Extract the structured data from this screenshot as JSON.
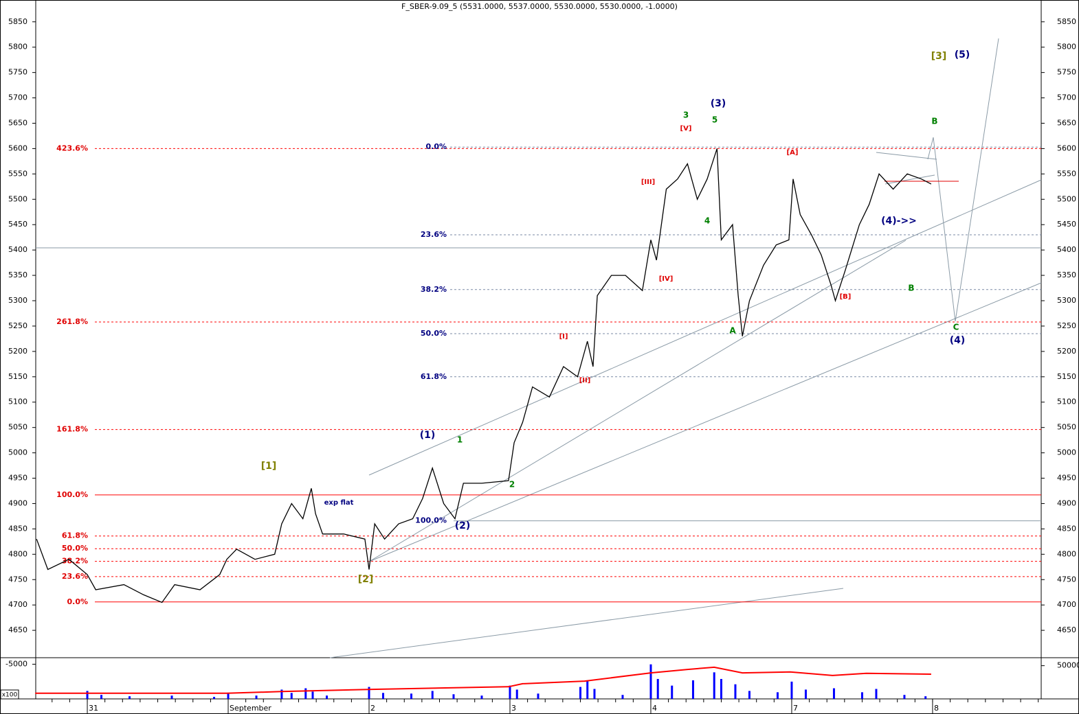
{
  "chart_data": [
    {
      "type": "line",
      "title": "F_SBER-9.09_5 (5531.0000, 5537.0000, 5530.0000, 5530.0000, -1.0000)",
      "color": "#000000",
      "x": [
        -0.36,
        -0.28,
        -0.13,
        0,
        0.06,
        0.26,
        0.4,
        0.53,
        0.62,
        0.8,
        0.94,
        0.99,
        1.06,
        1.19,
        1.33,
        1.38,
        1.45,
        1.53,
        1.59,
        1.62,
        1.67,
        1.82,
        1.97,
        2.0,
        2.04,
        2.11,
        2.21,
        2.31,
        2.38,
        2.45,
        2.53,
        2.61,
        2.67,
        2.8,
        2.99,
        3.03,
        3.09,
        3.16,
        3.28,
        3.38,
        3.48,
        3.55,
        3.59,
        3.62,
        3.72,
        3.82,
        3.94,
        4.0,
        4.04,
        4.11,
        4.19,
        4.26,
        4.33,
        4.4,
        4.47,
        4.5,
        4.58,
        4.62,
        4.65,
        4.7,
        4.8,
        4.89,
        4.98,
        5.01,
        5.06,
        5.14,
        5.21,
        5.28,
        5.31,
        5.38,
        5.48,
        5.55,
        5.62,
        5.72,
        5.82,
        5.92,
        5.99
      ],
      "values": [
        4830,
        4770,
        4790,
        4760,
        4730,
        4740,
        4720,
        4705,
        4740,
        4730,
        4760,
        4790,
        4810,
        4790,
        4800,
        4860,
        4900,
        4870,
        4930,
        4880,
        4840,
        4840,
        4830,
        4770,
        4860,
        4830,
        4860,
        4870,
        4910,
        4970,
        4900,
        4870,
        4940,
        4940,
        4945,
        5020,
        5060,
        5130,
        5110,
        5170,
        5150,
        5220,
        5170,
        5310,
        5350,
        5350,
        5320,
        5420,
        5380,
        5520,
        5540,
        5570,
        5500,
        5540,
        5600,
        5420,
        5450,
        5310,
        5230,
        5300,
        5370,
        5410,
        5420,
        5540,
        5470,
        5430,
        5390,
        5330,
        5300,
        5360,
        5450,
        5490,
        5550,
        5520,
        5550,
        5540,
        5530
      ],
      "xlim": [
        -0.366,
        6.771
      ],
      "xticks": [
        {
          "value": 0,
          "label": "31"
        },
        {
          "value": 1,
          "label": "September"
        },
        2,
        3,
        4,
        {
          "value": 5,
          "label": "7"
        },
        {
          "value": 6,
          "label": "8"
        }
      ],
      "ylim": [
        4596,
        5893
      ],
      "yticks": [
        4650,
        4700,
        4750,
        4800,
        4850,
        4900,
        4950,
        5000,
        5050,
        5100,
        5150,
        5200,
        5250,
        5300,
        5350,
        5400,
        5450,
        5500,
        5550,
        5600,
        5650,
        5700,
        5750,
        5800,
        5850
      ],
      "fib_levels_red": [
        {
          "value": 5600,
          "label": "423.6%"
        },
        {
          "value": 5258,
          "label": "261.8%"
        },
        {
          "value": 5046,
          "label": "161.8%"
        },
        {
          "value": 4917,
          "label": "100.0%"
        },
        {
          "value": 4836,
          "label": "61.8%"
        },
        {
          "value": 4811,
          "label": "50.0%"
        },
        {
          "value": 4786,
          "label": "38.2%"
        },
        {
          "value": 4756,
          "label": "23.6%"
        },
        {
          "value": 4706,
          "label": "0.0%"
        }
      ],
      "fib_levels_blue": [
        {
          "value": 5603,
          "label": "0.0%"
        },
        {
          "value": 5430,
          "label": "23.6%"
        },
        {
          "value": 5322,
          "label": "38.2%"
        },
        {
          "value": 5235,
          "label": "50.0%"
        },
        {
          "value": 5150,
          "label": "61.8%"
        },
        {
          "value": 4866,
          "label": "100.0%"
        }
      ],
      "annotations": [
        {
          "text": "[1]",
          "color": "#808000"
        },
        {
          "text": "[2]",
          "color": "#808000"
        },
        {
          "text": "[3]",
          "color": "#808000"
        },
        {
          "text": "(1)",
          "color": "#000080"
        },
        {
          "text": "(2)",
          "color": "#000080"
        },
        {
          "text": "(3)",
          "color": "#000080"
        },
        {
          "text": "(4)",
          "color": "#000080"
        },
        {
          "text": "(5)",
          "color": "#000080"
        },
        {
          "text": "(4)->>",
          "color": "#000080"
        },
        {
          "text": "1",
          "color": "#008000"
        },
        {
          "text": "2",
          "color": "#008000"
        },
        {
          "text": "3",
          "color": "#008000"
        },
        {
          "text": "4",
          "color": "#008000"
        },
        {
          "text": "5",
          "color": "#008000"
        },
        {
          "text": "A",
          "color": "#008000"
        },
        {
          "text": "B",
          "color": "#008000"
        },
        {
          "text": "B",
          "color": "#008000"
        },
        {
          "text": "C",
          "color": "#008000"
        },
        {
          "text": "[I]",
          "color": "#e00000"
        },
        {
          "text": "[II]",
          "color": "#e00000"
        },
        {
          "text": "[III]",
          "color": "#e00000"
        },
        {
          "text": "[IV]",
          "color": "#e00000"
        },
        {
          "text": "[V]",
          "color": "#e00000"
        },
        {
          "text": "[A]",
          "color": "#e00000"
        },
        {
          "text": "[B]",
          "color": "#e00000"
        },
        {
          "text": "exp flat",
          "color": "#000080"
        }
      ]
    },
    {
      "type": "bar",
      "ylabel": "x100",
      "color": "#0000ff",
      "x": [
        0.0,
        0.1,
        0.3,
        0.6,
        0.9,
        1.0,
        1.2,
        1.38,
        1.45,
        1.55,
        1.6,
        1.7,
        2.0,
        2.1,
        2.3,
        2.45,
        2.6,
        2.8,
        3.0,
        3.05,
        3.2,
        3.5,
        3.55,
        3.6,
        3.8,
        4.0,
        4.05,
        4.15,
        4.3,
        4.45,
        4.5,
        4.6,
        4.7,
        4.9,
        5.0,
        5.1,
        5.3,
        5.5,
        5.6,
        5.8,
        5.95
      ],
      "values": [
        12000,
        6000,
        4000,
        5000,
        3000,
        8000,
        5000,
        14000,
        9000,
        16000,
        11000,
        5000,
        18000,
        9000,
        8000,
        12000,
        7000,
        5000,
        20000,
        14000,
        8000,
        18000,
        28000,
        15000,
        6000,
        52000,
        30000,
        20000,
        28000,
        40000,
        30000,
        22000,
        12000,
        10000,
        26000,
        14000,
        16000,
        10000,
        15000,
        6000,
        4000
      ],
      "xlim": [
        -0.366,
        6.771
      ],
      "ylim": [
        0,
        62000
      ],
      "yticks": [
        50000
      ]
    },
    {
      "type": "line",
      "color": "#ff0000",
      "x": [
        -0.37,
        0,
        0.99,
        1.38,
        2.02,
        2.99,
        3.09,
        3.53,
        4.0,
        4.26,
        4.45,
        4.65,
        4.99,
        5.29,
        5.53,
        5.99
      ],
      "values": [
        -11700,
        -11700,
        -11700,
        -11300,
        -10800,
        -10200,
        -9500,
        -8900,
        -7000,
        -6200,
        -5700,
        -7000,
        -6800,
        -7600,
        -7100,
        -7300
      ],
      "xlim": [
        -0.366,
        6.771
      ],
      "ylim": [
        -13000,
        -3500
      ],
      "yticks": [
        -5000
      ]
    }
  ]
}
